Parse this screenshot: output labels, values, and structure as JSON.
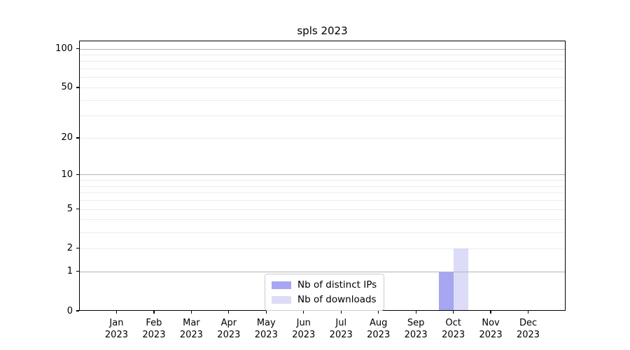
{
  "chart_data": {
    "type": "bar",
    "title": "spls 2023",
    "categories": [
      "Jan 2023",
      "Feb 2023",
      "Mar 2023",
      "Apr 2023",
      "May 2023",
      "Jun 2023",
      "Jul 2023",
      "Aug 2023",
      "Sep 2023",
      "Oct 2023",
      "Nov 2023",
      "Dec 2023"
    ],
    "series": [
      {
        "name": "Nb of distinct IPs",
        "color": "#a6a6f2",
        "edge": "#9595ea",
        "values": [
          0,
          0,
          0,
          0,
          0,
          0,
          0,
          0,
          0,
          1,
          0,
          0
        ]
      },
      {
        "name": "Nb of downloads",
        "color": "#dcdcf8",
        "edge": "#cfcff4",
        "values": [
          0,
          0,
          0,
          0,
          0,
          0,
          0,
          0,
          0,
          2,
          0,
          0
        ]
      }
    ],
    "xlabel": "",
    "ylabel": "",
    "y_scale": "log10(value+1)",
    "ylim": [
      0,
      110
    ],
    "y_ticks": [
      0,
      1,
      2,
      5,
      10,
      20,
      50,
      100
    ],
    "y_grid_major": [
      1,
      10,
      100
    ],
    "y_grid_minor": [
      2,
      3,
      4,
      5,
      6,
      7,
      8,
      9,
      20,
      30,
      40,
      50,
      60,
      70,
      80,
      90
    ],
    "legend": {
      "position": "lower center"
    },
    "colors": {
      "grid_major": "#b3b3b3",
      "grid_minor": "#ececec",
      "axis": "#000000"
    }
  }
}
